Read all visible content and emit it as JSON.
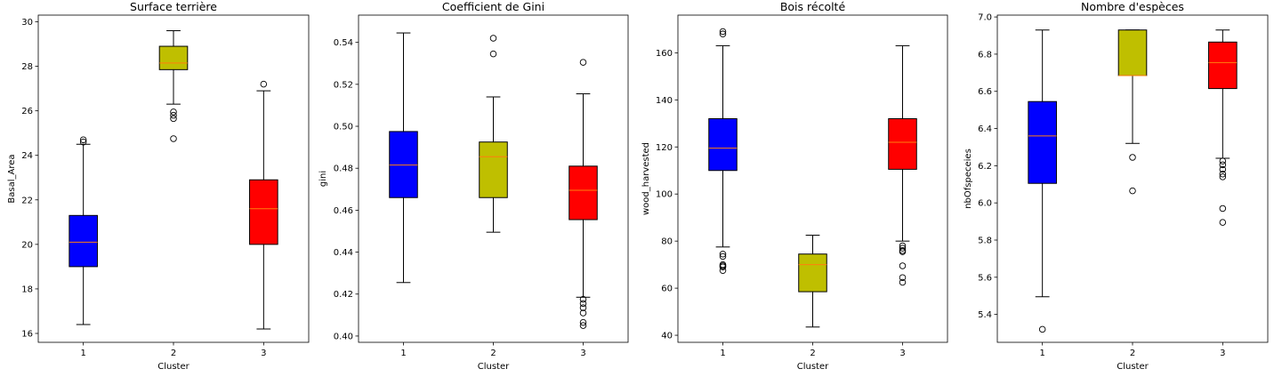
{
  "chart_data": [
    {
      "type": "boxplot",
      "title": "Surface terrière",
      "xlabel": "Cluster",
      "ylabel": "Basal_Area",
      "categories": [
        "1",
        "2",
        "3"
      ],
      "colors": [
        "#0000ff",
        "#bfbf00",
        "#ff0000"
      ],
      "median_color": "#ff7f0e",
      "ylim": [
        15.6,
        30.3
      ],
      "yticks": [
        16,
        18,
        20,
        22,
        24,
        26,
        28,
        30
      ],
      "boxes": [
        {
          "whislo": 16.4,
          "q1": 19.0,
          "med": 20.1,
          "q3": 21.3,
          "whishi": 24.5,
          "fliers": [
            24.6,
            24.7
          ]
        },
        {
          "whislo": 26.3,
          "q1": 27.85,
          "med": 28.15,
          "q3": 28.9,
          "whishi": 29.6,
          "fliers": [
            25.95,
            25.8,
            25.65,
            24.75
          ]
        },
        {
          "whislo": 16.2,
          "q1": 20.0,
          "med": 21.6,
          "q3": 22.9,
          "whishi": 26.9,
          "fliers": [
            27.2
          ]
        }
      ]
    },
    {
      "type": "boxplot",
      "title": "Coefficient de Gini",
      "xlabel": "Cluster",
      "ylabel": "gini",
      "categories": [
        "1",
        "2",
        "3"
      ],
      "colors": [
        "#0000ff",
        "#bfbf00",
        "#ff0000"
      ],
      "median_color": "#ff7f0e",
      "ylim": [
        0.397,
        0.553
      ],
      "yticks": [
        0.4,
        0.42,
        0.44,
        0.46,
        0.48,
        0.5,
        0.52,
        0.54
      ],
      "tick_decimals": 2,
      "boxes": [
        {
          "whislo": 0.4255,
          "q1": 0.466,
          "med": 0.4815,
          "q3": 0.4975,
          "whishi": 0.5445,
          "fliers": []
        },
        {
          "whislo": 0.4495,
          "q1": 0.466,
          "med": 0.4855,
          "q3": 0.4925,
          "whishi": 0.514,
          "fliers": [
            0.542,
            0.5345
          ]
        },
        {
          "whislo": 0.4185,
          "q1": 0.4555,
          "med": 0.4695,
          "q3": 0.481,
          "whishi": 0.5155,
          "fliers": [
            0.5305,
            0.4175,
            0.4155,
            0.4135,
            0.411,
            0.4065,
            0.405
          ]
        }
      ]
    },
    {
      "type": "boxplot",
      "title": "Bois récolté",
      "xlabel": "Cluster",
      "ylabel": "wood_harvested",
      "categories": [
        "1",
        "2",
        "3"
      ],
      "colors": [
        "#0000ff",
        "#bfbf00",
        "#ff0000"
      ],
      "median_color": "#ff7f0e",
      "ylim": [
        37,
        176
      ],
      "yticks": [
        40,
        60,
        80,
        100,
        120,
        140,
        160
      ],
      "boxes": [
        {
          "whislo": 77.5,
          "q1": 110.0,
          "med": 119.5,
          "q3": 132.0,
          "whishi": 163.0,
          "fliers": [
            169.0,
            168.0,
            74.5,
            73.5,
            70.0,
            69.5,
            69.0,
            67.5
          ]
        },
        {
          "whislo": 43.5,
          "q1": 58.5,
          "med": 70.0,
          "q3": 74.5,
          "whishi": 82.5,
          "fliers": []
        },
        {
          "whislo": 80.0,
          "q1": 110.5,
          "med": 122.0,
          "q3": 132.0,
          "whishi": 163.0,
          "fliers": [
            78.0,
            77.0,
            76.0,
            75.5,
            69.5,
            64.5,
            62.5
          ]
        }
      ]
    },
    {
      "type": "boxplot",
      "title": "Nombre d'espèces",
      "xlabel": "Cluster",
      "ylabel": "nbOfspeceies",
      "categories": [
        "1",
        "2",
        "3"
      ],
      "colors": [
        "#0000ff",
        "#bfbf00",
        "#ff0000"
      ],
      "median_color": "#ff7f0e",
      "ylim": [
        5.25,
        7.01
      ],
      "yticks": [
        5.4,
        5.6,
        5.8,
        6.0,
        6.2,
        6.4,
        6.6,
        6.8,
        7.0
      ],
      "tick_decimals": 1,
      "boxes": [
        {
          "whislo": 5.495,
          "q1": 6.105,
          "med": 6.36,
          "q3": 6.545,
          "whishi": 6.93,
          "fliers": [
            5.32
          ]
        },
        {
          "whislo": 6.32,
          "q1": 6.685,
          "med": 6.685,
          "q3": 6.93,
          "whishi": 6.93,
          "fliers": [
            6.245,
            6.065
          ]
        },
        {
          "whislo": 6.24,
          "q1": 6.615,
          "med": 6.755,
          "q3": 6.865,
          "whishi": 6.93,
          "fliers": [
            6.225,
            6.205,
            6.18,
            6.155,
            6.14,
            5.97,
            5.895
          ]
        }
      ]
    }
  ]
}
